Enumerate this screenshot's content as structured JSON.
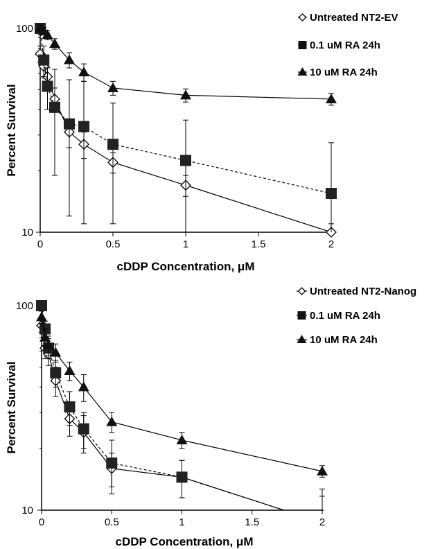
{
  "chart_data": [
    {
      "type": "line",
      "y_scale": "log",
      "ylim": [
        10,
        100
      ],
      "xlim": [
        0,
        2
      ],
      "xlabel": "cDDP Concentration, μM",
      "ylabel": "Percent Survival",
      "x_tick_labels": [
        "0",
        "0.5",
        "1",
        "1.5",
        "2"
      ],
      "y_tick_labels": [
        "10",
        "100"
      ],
      "legend_position": "top-right",
      "series": [
        {
          "name": "Untreated NT2-EV",
          "marker": "diamond-open",
          "line": "solid",
          "x": [
            0,
            0.025,
            0.05,
            0.1,
            0.2,
            0.3,
            0.5,
            1,
            2
          ],
          "y": [
            75,
            65,
            58,
            45,
            31,
            27,
            22,
            17,
            10
          ],
          "err": [
            7,
            8,
            7,
            6,
            5,
            4,
            2.5,
            2,
            1
          ]
        },
        {
          "name": "0.1 uM RA 24h",
          "marker": "square",
          "line": "dashed",
          "x": [
            0,
            0.025,
            0.05,
            0.1,
            0.2,
            0.3,
            0.5,
            1,
            2
          ],
          "y": [
            100,
            70,
            52,
            41,
            34,
            33,
            27,
            22.5,
            15.5
          ],
          "err": [
            6,
            12,
            12,
            22,
            22,
            22,
            16,
            13,
            12
          ]
        },
        {
          "name": "10 uM RA 24h",
          "marker": "triangle",
          "line": "solid",
          "x": [
            0,
            0.025,
            0.05,
            0.1,
            0.2,
            0.3,
            0.5,
            1,
            2
          ],
          "y": [
            100,
            97,
            93,
            84,
            70,
            61,
            51,
            47,
            45
          ],
          "err": [
            4,
            4,
            5,
            5,
            6,
            6,
            4,
            3.5,
            3
          ]
        }
      ]
    },
    {
      "type": "line",
      "y_scale": "log",
      "ylim": [
        10,
        100
      ],
      "xlim": [
        0,
        2
      ],
      "xlabel": "cDDP Concentration, μM",
      "ylabel": "Percent Survival",
      "x_tick_labels": [
        "0",
        "0.5",
        "1",
        "1.5",
        "2"
      ],
      "y_tick_labels": [
        "10",
        "100"
      ],
      "legend_position": "top-right",
      "series": [
        {
          "name": "Untreated NT2-Nanog",
          "marker": "diamond-open",
          "line": "solid",
          "x": [
            0,
            0.025,
            0.05,
            0.1,
            0.2,
            0.3,
            0.5,
            1,
            2
          ],
          "y": [
            80,
            62,
            58,
            43,
            28,
            24,
            16,
            14.5,
            8.7
          ],
          "err": [
            6,
            7,
            7,
            7,
            5,
            5,
            3,
            3,
            4
          ]
        },
        {
          "name": "0.1 uM RA 24h",
          "marker": "square",
          "line": "dashed",
          "x": [
            0,
            0.025,
            0.05,
            0.1,
            0.2,
            0.3,
            0.5,
            1,
            2
          ],
          "y": [
            100,
            77,
            62,
            47,
            32,
            25,
            17,
            14.5,
            8.7
          ],
          "err": [
            5,
            7,
            7,
            7,
            6,
            5,
            5,
            3,
            3
          ]
        },
        {
          "name": "10 uM RA 24h",
          "marker": "triangle",
          "line": "solid",
          "x": [
            0,
            0.025,
            0.05,
            0.1,
            0.2,
            0.3,
            0.5,
            1,
            2
          ],
          "y": [
            88,
            70,
            64,
            59,
            48,
            40,
            27,
            22,
            15.5
          ],
          "err": [
            6,
            7,
            7,
            6,
            5,
            6,
            3,
            2,
            1
          ]
        }
      ]
    }
  ]
}
